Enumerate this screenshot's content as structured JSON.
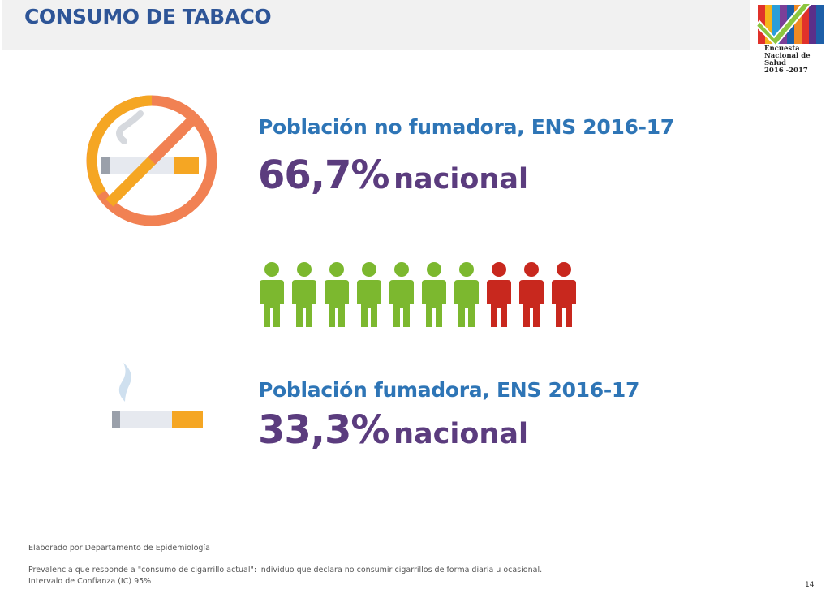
{
  "header": {
    "title": "CONSUMO DE TABACO"
  },
  "logo": {
    "lines": [
      "Encuesta",
      "Nacional de",
      "Salud",
      "2016 -2017"
    ]
  },
  "nonsmokers": {
    "label": "Población no fumadora, ENS 2016-17",
    "value": "66,7%",
    "scope": "nacional",
    "icon": "no-smoking-icon"
  },
  "people_chart": {
    "total": 10,
    "nonsmoker_count": 7,
    "smoker_count": 3,
    "nonsmoker_color": "#7cb82f",
    "smoker_color": "#c8281e"
  },
  "smokers": {
    "label": "Población fumadora, ENS 2016-17",
    "value": "33,3%",
    "scope": "nacional",
    "icon": "cigarette-icon"
  },
  "footer": {
    "credit": "Elaborado por Departamento de Epidemiología",
    "definition": "Prevalencia que responde a \"consumo de cigarrillo actual\": individuo que declara no consumir cigarrillos de forma diaria u ocasional.",
    "ci": "Intervalo de Confianza (IC) 95%",
    "page_number": "14"
  },
  "colors": {
    "title": "#2e5597",
    "label": "#2e75b6",
    "value": "#5b3c7e"
  }
}
